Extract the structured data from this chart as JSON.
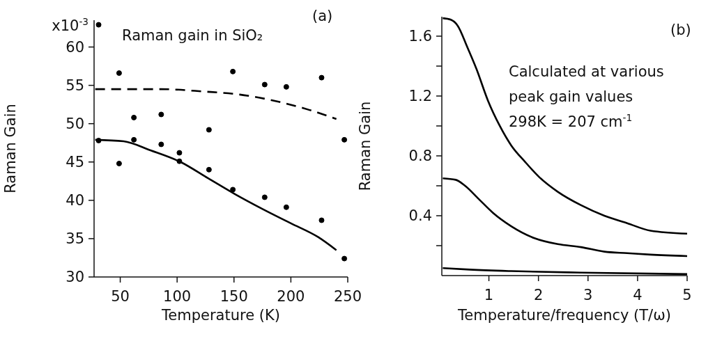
{
  "chart_data": [
    {
      "type": "scatter",
      "xlabel": "Temperature (K)",
      "ylabel": "Raman Gain",
      "annotations": [
        "(a)",
        "Raman gain in SiO₂",
        "x10$^{-3}$"
      ],
      "xlim": [
        27,
        250
      ],
      "xticks": [
        50,
        100,
        150,
        200,
        250
      ],
      "ylim": [
        30,
        63.5
      ],
      "yticks": [
        30,
        35,
        40,
        45,
        50,
        55,
        60
      ],
      "grid": false,
      "legend": false,
      "series": [
        {
          "color": "#000000",
          "marker": "circle",
          "x": [
            31,
            49,
            62,
            86,
            102,
            128,
            149,
            177,
            196,
            227,
            247
          ],
          "values": [
            62.9,
            56.6,
            50.8,
            51.2,
            46.2,
            49.2,
            56.8,
            55.1,
            54.8,
            56.0,
            47.9
          ]
        },
        {
          "color": "#000000",
          "marker": "circle",
          "x": [
            31,
            49,
            62,
            86,
            102,
            128,
            149,
            177,
            196,
            227,
            247
          ],
          "values": [
            47.8,
            44.8,
            47.9,
            47.3,
            45.1,
            44.0,
            41.4,
            40.4,
            39.1,
            37.4,
            32.4
          ]
        },
        {
          "type": "line",
          "color": "#000000",
          "marker": "none",
          "line_style": "dashed",
          "x": [
            28,
            86,
            123,
            155,
            188,
            216,
            240
          ],
          "values": [
            54.5,
            54.5,
            54.2,
            53.8,
            52.9,
            51.8,
            50.6
          ]
        },
        {
          "type": "line",
          "color": "#000000",
          "marker": "none",
          "line_style": "solid",
          "x": [
            28,
            53,
            77,
            103,
            127,
            151,
            176,
            200,
            224,
            240
          ],
          "values": [
            47.9,
            47.7,
            46.5,
            45.0,
            42.9,
            40.8,
            38.8,
            37.0,
            35.2,
            33.5
          ]
        }
      ]
    },
    {
      "type": "line",
      "xlabel": "Temperature/frequency (T/ω)",
      "ylabel": "Raman Gain",
      "annotations": [
        "(b)",
        "Calculated at various",
        "peak gain values",
        "298K = 207 cm$^{-1}$"
      ],
      "xlim": [
        0.05,
        5
      ],
      "xticks": [
        1,
        2,
        3,
        4,
        5
      ],
      "ylim": [
        0,
        1.73
      ],
      "yticks": [
        {
          "value": 0.2,
          "label": null
        },
        0.4,
        {
          "value": 0.6,
          "label": null
        },
        0.8,
        {
          "value": 1.0,
          "label": null
        },
        1.2,
        {
          "value": 1.4,
          "label": null
        },
        1.6
      ],
      "grid": false,
      "legend": false,
      "series": [
        {
          "color": "#000000",
          "line_style": "solid",
          "x": [
            0.07,
            0.23,
            0.37,
            0.56,
            0.75,
            0.98,
            1.22,
            1.45,
            1.73,
            2.01,
            2.39,
            2.86,
            3.33,
            3.79,
            4.26,
            5.0
          ],
          "values": [
            1.72,
            1.71,
            1.67,
            1.53,
            1.38,
            1.17,
            1.0,
            0.87,
            0.76,
            0.66,
            0.56,
            0.47,
            0.4,
            0.35,
            0.3,
            0.28
          ]
        },
        {
          "color": "#000000",
          "line_style": "solid",
          "x": [
            0.07,
            0.33,
            0.52,
            0.8,
            1.08,
            1.45,
            1.92,
            2.39,
            2.86,
            3.33,
            3.79,
            4.26,
            5.0
          ],
          "values": [
            0.65,
            0.64,
            0.6,
            0.51,
            0.42,
            0.33,
            0.25,
            0.21,
            0.19,
            0.16,
            0.15,
            0.14,
            0.13
          ]
        },
        {
          "color": "#000000",
          "line_style": "solid",
          "x": [
            0.07,
            0.61,
            1.45,
            2.86,
            5.0
          ],
          "values": [
            0.05,
            0.04,
            0.03,
            0.02,
            0.01
          ]
        }
      ]
    }
  ]
}
